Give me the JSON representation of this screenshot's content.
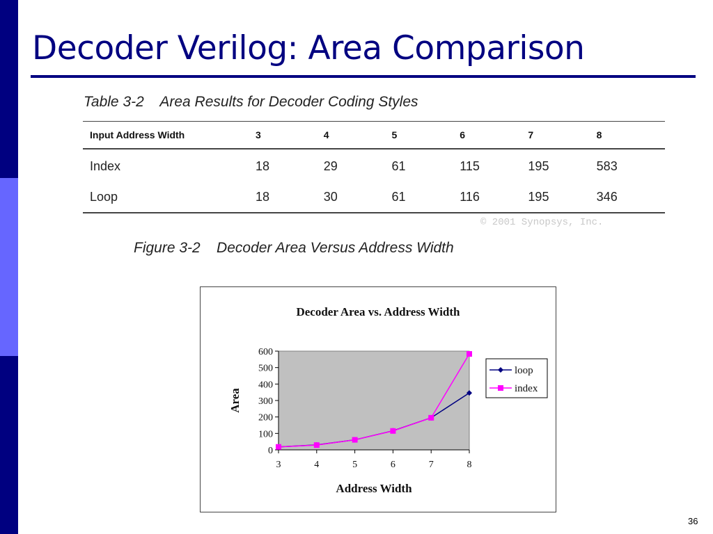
{
  "slide": {
    "title": "Decoder Verilog: Area Comparison",
    "page_number": "36",
    "copyright": "© 2001 Synopsys, Inc."
  },
  "table": {
    "caption": "Table 3-2    Area Results for Decoder Coding Styles",
    "headers": [
      "Input Address Width",
      "3",
      "4",
      "5",
      "6",
      "7",
      "8"
    ],
    "rows": [
      [
        "Index",
        "18",
        "29",
        "61",
        "115",
        "195",
        "583"
      ],
      [
        "Loop",
        "18",
        "30",
        "61",
        "116",
        "195",
        "346"
      ]
    ]
  },
  "figure": {
    "caption": "Figure 3-2    Decoder Area Versus Address Width"
  },
  "chart_data": {
    "type": "line",
    "title": "Decoder Area vs. Address Width",
    "xlabel": "Address Width",
    "ylabel": "Area",
    "x": [
      3,
      4,
      5,
      6,
      7,
      8
    ],
    "xticks": [
      "3",
      "4",
      "5",
      "6",
      "7",
      "8"
    ],
    "yticks": [
      "0",
      "100",
      "200",
      "300",
      "400",
      "500",
      "600"
    ],
    "ylim": [
      0,
      600
    ],
    "grid": false,
    "legend_position": "right",
    "plot_background": "#c0c0c0",
    "series": [
      {
        "name": "loop",
        "values": [
          18,
          30,
          61,
          116,
          195,
          346
        ],
        "color": "#000080",
        "marker": "diamond"
      },
      {
        "name": "index",
        "values": [
          18,
          29,
          61,
          115,
          195,
          583
        ],
        "color": "#ff00ff",
        "marker": "square"
      }
    ]
  },
  "colors": {
    "title": "#000080",
    "sidebar_dark": "#000080",
    "sidebar_light": "#6666ff"
  }
}
